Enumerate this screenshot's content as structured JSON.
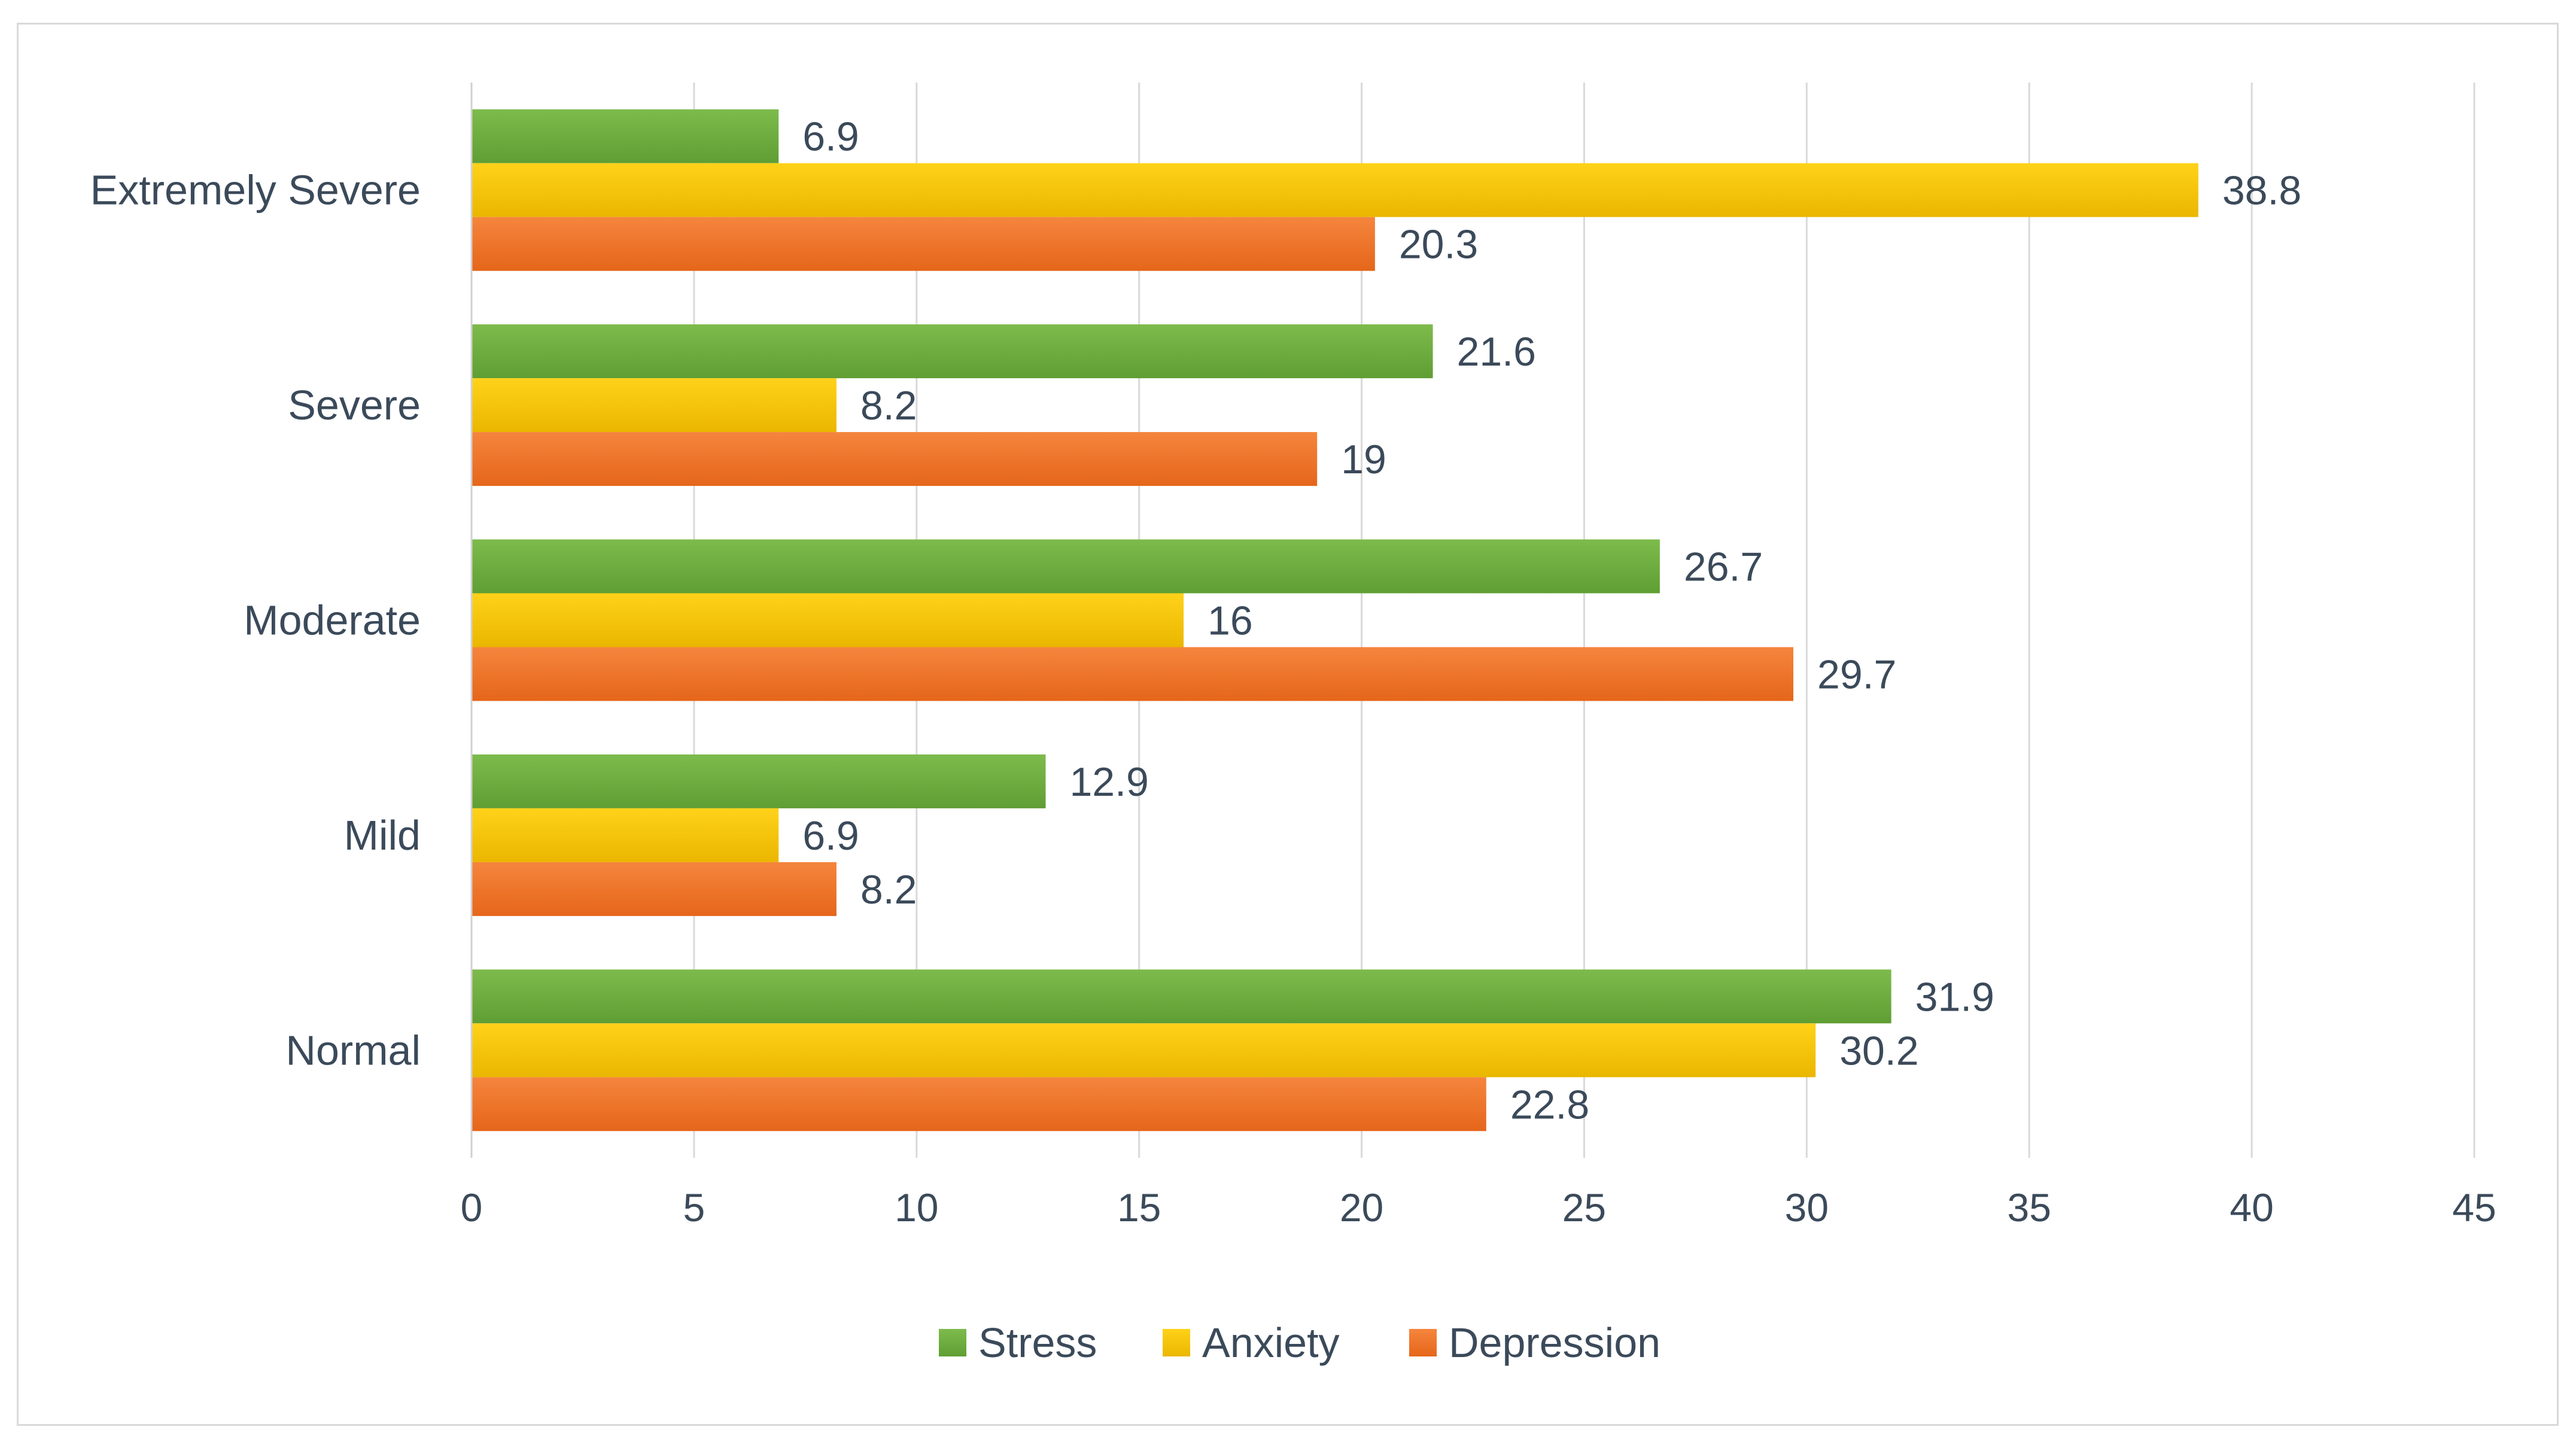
{
  "chart_data": {
    "type": "bar",
    "orientation": "horizontal",
    "title": "",
    "xlabel": "",
    "ylabel": "",
    "xlim": [
      0,
      45
    ],
    "x_ticks": [
      0,
      5,
      10,
      15,
      20,
      25,
      30,
      35,
      40,
      45
    ],
    "grid": true,
    "legend_position": "bottom",
    "categories": [
      "Extremely Severe",
      "Severe",
      "Moderate",
      "Mild",
      "Normal"
    ],
    "series": [
      {
        "name": "Stress",
        "color": "#6aaa3a",
        "values": [
          6.9,
          21.6,
          26.7,
          12.9,
          31.9
        ],
        "labels": [
          "6.9",
          "21.6",
          "26.7",
          "12.9",
          "31.9"
        ]
      },
      {
        "name": "Anxiety",
        "color": "#f5c200",
        "values": [
          38.8,
          8.2,
          16,
          6.9,
          30.2
        ],
        "labels": [
          "38.8",
          "8.2",
          "16",
          "6.9",
          "30.2"
        ]
      },
      {
        "name": "Depression",
        "color": "#ee7125",
        "values": [
          20.3,
          19,
          29.7,
          8.2,
          22.8
        ],
        "labels": [
          "20.3",
          "19",
          "29.7",
          "8.2",
          "22.8"
        ]
      }
    ]
  }
}
